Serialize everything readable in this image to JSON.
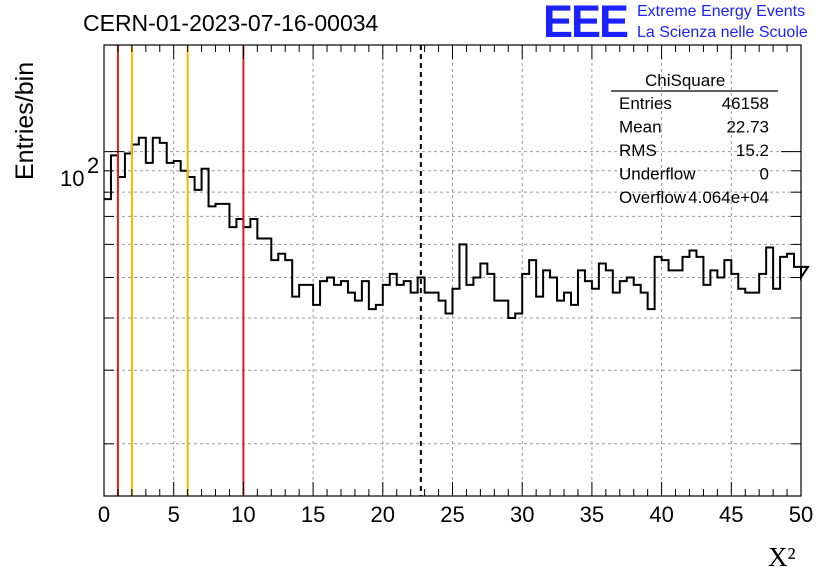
{
  "title": "CERN-01-2023-07-16-00034",
  "logo": {
    "mark": "EEE",
    "line1": "Extreme Energy Events",
    "line2": "La Scienza nelle Scuole",
    "color": "#1c22ff"
  },
  "chart_data": {
    "type": "histogram",
    "title": "CERN-01-2023-07-16-00034",
    "xlabel": "X²",
    "ylabel": "Entries/bin",
    "xlim": [
      0,
      50
    ],
    "ylim": [
      15,
      180
    ],
    "y_scale": "log",
    "grid": true,
    "bin_width": 0.5,
    "x_ticks": [
      "0",
      "5",
      "10",
      "15",
      "20",
      "25",
      "30",
      "35",
      "40",
      "45",
      "50"
    ],
    "y_ticks": [
      {
        "value": 100,
        "label": "10",
        "exponent": "2"
      }
    ],
    "values": [
      77,
      98,
      87,
      99,
      104,
      108,
      94,
      108,
      105,
      94,
      95,
      90,
      87,
      81,
      91,
      74,
      75,
      75,
      66,
      69,
      66,
      69,
      62,
      62,
      55,
      57,
      55,
      45,
      48,
      48,
      43,
      49,
      50,
      48,
      49,
      46,
      44,
      49,
      42,
      43,
      48,
      51,
      48,
      49,
      46,
      50,
      46,
      46,
      44,
      41,
      47,
      60,
      48,
      50,
      54,
      51,
      44,
      44,
      40,
      41,
      51,
      55,
      45,
      52,
      50,
      44,
      46,
      43,
      52,
      49,
      47,
      54,
      52,
      46,
      49,
      50,
      48,
      46,
      42,
      56,
      55,
      52,
      52,
      56,
      58,
      56,
      48,
      52,
      50,
      55,
      51,
      47,
      46,
      46,
      51,
      59,
      47,
      56,
      57,
      53,
      50,
      53
    ],
    "vertical_lines": [
      {
        "x": 1,
        "color": "#e0201b"
      },
      {
        "x": 2,
        "color": "#f5b800"
      },
      {
        "x": 6,
        "color": "#f5b800"
      },
      {
        "x": 10,
        "color": "#e0201b"
      },
      {
        "x": 22.73,
        "color": "#000000",
        "style": "dashed"
      }
    ],
    "stats_box": {
      "name": "ChiSquare",
      "rows": [
        {
          "label": "Entries",
          "value": "46158"
        },
        {
          "label": "Mean",
          "value": "22.73"
        },
        {
          "label": "RMS",
          "value": "15.2"
        },
        {
          "label": "Underflow",
          "value": "0"
        },
        {
          "label": "Overflow",
          "value": "4.064e+04"
        }
      ]
    }
  }
}
